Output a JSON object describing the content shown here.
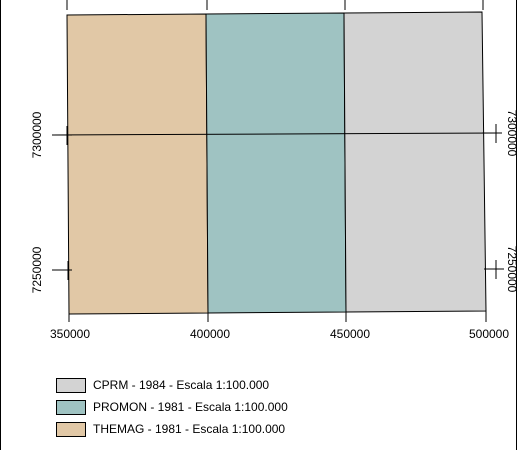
{
  "map": {
    "zones": [
      {
        "name": "THEMAG - 1981 - Escala 1:100.000",
        "color": "#e1c8a6",
        "x_range": [
          350000,
          400000
        ]
      },
      {
        "name": "PROMON - 1981 - Escala 1:100.000",
        "color": "#9fc3c2",
        "x_range": [
          400000,
          450000
        ]
      },
      {
        "name": "CPRM - 1984 - Escala 1:100.000",
        "color": "#d3d3d3",
        "x_range": [
          450000,
          500000
        ]
      }
    ],
    "x_ticks": [
      "350000",
      "400000",
      "450000",
      "500000"
    ],
    "y_ticks": [
      "7300000",
      "7250000"
    ],
    "legend": [
      {
        "label": "CPRM - 1984 - Escala 1:100.000",
        "color": "#d3d3d3"
      },
      {
        "label": "PROMON - 1981 - Escala 1:100.000",
        "color": "#9fc3c2"
      },
      {
        "label": "THEMAG - 1981 - Escala 1:100.000",
        "color": "#e1c8a6"
      }
    ]
  }
}
